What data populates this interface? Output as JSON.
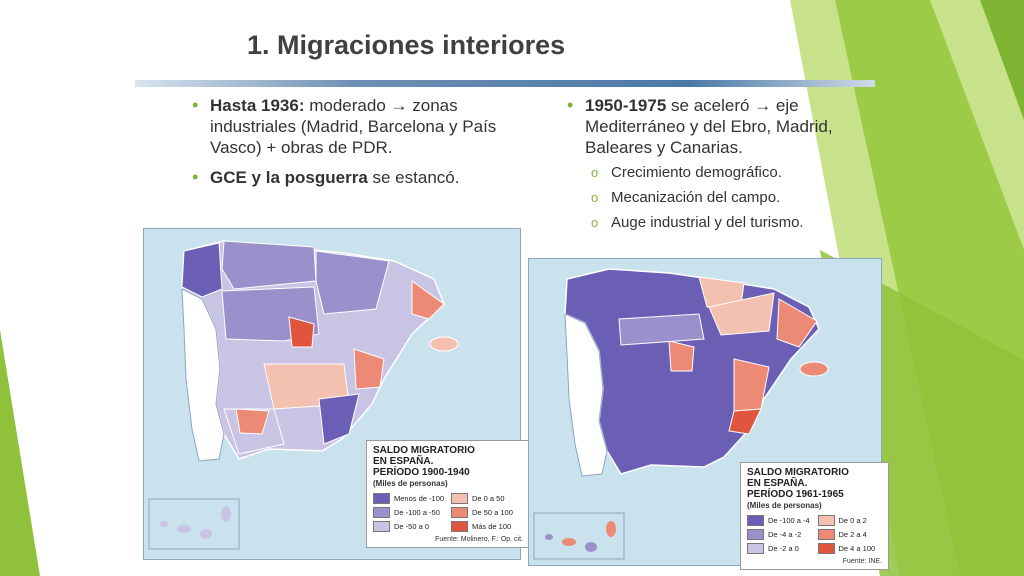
{
  "slide": {
    "title": "1. Migraciones interiores",
    "left_bullets": [
      {
        "bold": "Hasta 1936:",
        "text": " moderado → zonas industriales (Madrid, Barcelona y País Vasco) + obras de PDR."
      },
      {
        "bold": "GCE y la posguerra",
        "text": " se estancó."
      }
    ],
    "right_bullet": {
      "bold": "1950-1975",
      "text": " se aceleró → eje Mediterráneo y del Ebro, Madrid, Baleares y Canarias."
    },
    "sub_bullets": [
      "Crecimiento demográfico.",
      "Mecanización del campo.",
      "Auge industrial y del turismo."
    ]
  },
  "colors": {
    "sea": "#c9e2ee",
    "portugal": "#ffffff",
    "accent_green": "#7fb532",
    "dark_neg": "#6a5fb4",
    "mid_neg": "#9a90cc",
    "light_neg": "#c9c3e4",
    "light_pos": "#f4c1b0",
    "mid_pos": "#ec8a76",
    "dark_pos": "#e1553f"
  },
  "maps": [
    {
      "legend": {
        "title_lines": [
          "SALDO MIGRATORIO",
          "EN ESPAÑA.",
          "PERÍODO 1900-1940"
        ],
        "unit": "(Miles de personas)",
        "items": [
          {
            "label": "Menos de -100",
            "color": "#6a5fb4"
          },
          {
            "label": "De 0 a 50",
            "color": "#f4c1b0"
          },
          {
            "label": "De -100 a -50",
            "color": "#9a90cc"
          },
          {
            "label": "De 50 a 100",
            "color": "#ec8a76"
          },
          {
            "label": "De -50 a 0",
            "color": "#c9c3e4"
          },
          {
            "label": "Más de 100",
            "color": "#e1553f"
          }
        ],
        "source": "Fuente: Molinero, F.: Op. cit."
      }
    },
    {
      "legend": {
        "title_lines": [
          "SALDO MIGRATORIO",
          "EN ESPAÑA.",
          "PERÍODO 1961-1965"
        ],
        "unit": "(Miles de personas)",
        "items": [
          {
            "label": "De -100 a -4",
            "color": "#6a5fb4"
          },
          {
            "label": "De 0 a 2",
            "color": "#f4c1b0"
          },
          {
            "label": "De -4 a -2",
            "color": "#9a90cc"
          },
          {
            "label": "De 2 a 4",
            "color": "#ec8a76"
          },
          {
            "label": "De -2 a 0",
            "color": "#c9c3e4"
          },
          {
            "label": "De 4 a 100",
            "color": "#e1553f"
          }
        ],
        "source": "Fuente: INE."
      }
    }
  ]
}
